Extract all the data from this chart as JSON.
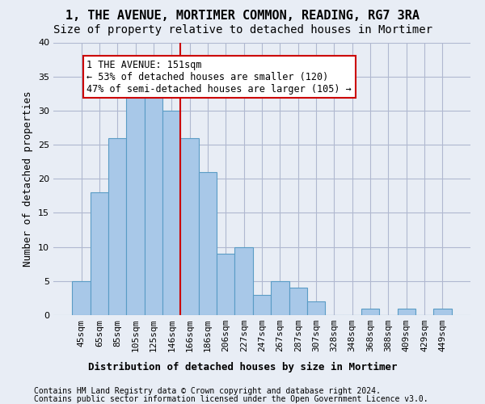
{
  "title": "1, THE AVENUE, MORTIMER COMMON, READING, RG7 3RA",
  "subtitle": "Size of property relative to detached houses in Mortimer",
  "xlabel": "Distribution of detached houses by size in Mortimer",
  "ylabel": "Number of detached properties",
  "bins": [
    "45sqm",
    "65sqm",
    "85sqm",
    "105sqm",
    "125sqm",
    "146sqm",
    "166sqm",
    "186sqm",
    "206sqm",
    "227sqm",
    "247sqm",
    "267sqm",
    "287sqm",
    "307sqm",
    "328sqm",
    "348sqm",
    "368sqm",
    "388sqm",
    "409sqm",
    "429sqm",
    "449sqm"
  ],
  "values": [
    5,
    18,
    26,
    32,
    32,
    30,
    26,
    21,
    9,
    10,
    3,
    5,
    4,
    2,
    0,
    0,
    1,
    0,
    1,
    0,
    1
  ],
  "bar_color": "#a8c8e8",
  "bar_edge_color": "#5a9cc5",
  "vline_x": 5.5,
  "vline_color": "#cc0000",
  "annotation_text": "1 THE AVENUE: 151sqm\n← 53% of detached houses are smaller (120)\n47% of semi-detached houses are larger (105) →",
  "annotation_box_color": "#ffffff",
  "annotation_box_edge_color": "#cc0000",
  "ylim": [
    0,
    40
  ],
  "yticks": [
    0,
    5,
    10,
    15,
    20,
    25,
    30,
    35,
    40
  ],
  "grid_color": "#b0b8d0",
  "bg_color": "#e8edf5",
  "footer_line1": "Contains HM Land Registry data © Crown copyright and database right 2024.",
  "footer_line2": "Contains public sector information licensed under the Open Government Licence v3.0.",
  "title_fontsize": 11,
  "subtitle_fontsize": 10,
  "xlabel_fontsize": 9,
  "ylabel_fontsize": 9,
  "tick_fontsize": 8,
  "annotation_fontsize": 8.5,
  "footer_fontsize": 7
}
